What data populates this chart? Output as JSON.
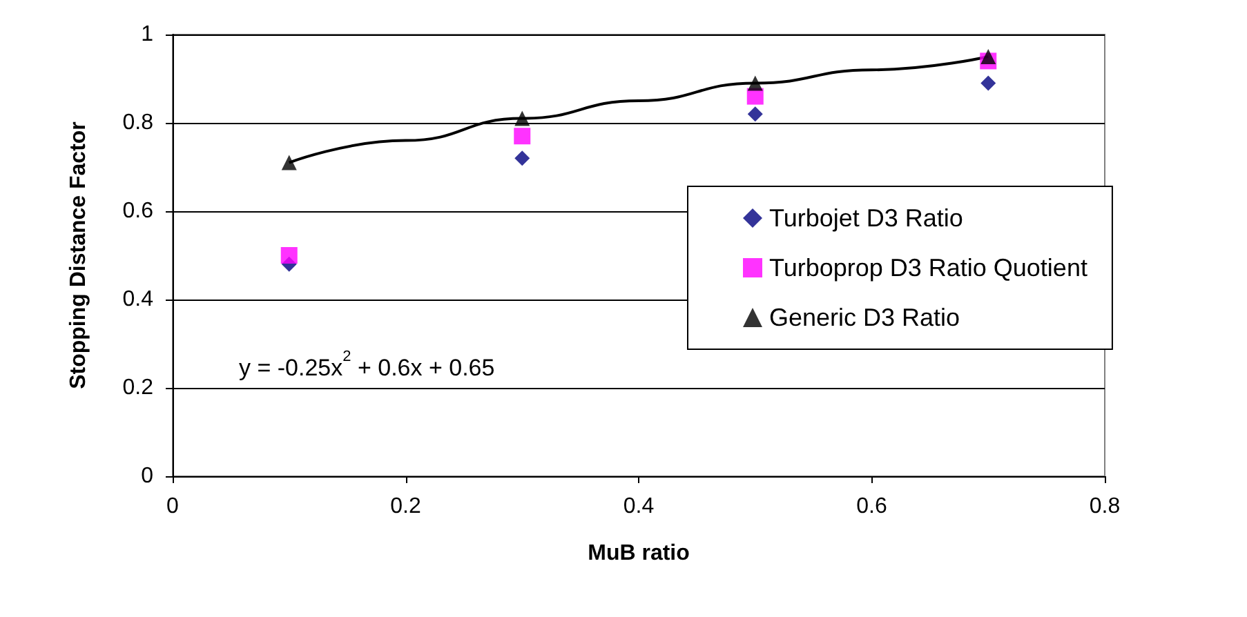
{
  "chart_data": {
    "type": "scatter",
    "xlabel": "MuB ratio",
    "ylabel": "Stopping Distance Factor",
    "x": [
      0.1,
      0.3,
      0.5,
      0.7
    ],
    "series": [
      {
        "name": "Turbojet D3 Ratio",
        "color": "#000080",
        "marker": "diamond",
        "values": [
          0.48,
          0.72,
          0.82,
          0.89
        ]
      },
      {
        "name": "Turboprop D3 Ratio Quotient",
        "color": "#ff00ff",
        "marker": "square",
        "values": [
          0.5,
          0.77,
          0.86,
          0.94
        ]
      },
      {
        "name": "Generic D3 Ratio",
        "color": "#000000",
        "marker": "triangle",
        "values": [
          0.71,
          0.81,
          0.89,
          0.95
        ]
      },
      {
        "type": "line",
        "color": "#000000",
        "marker": "none",
        "x": [
          0.1,
          0.2,
          0.3,
          0.4,
          0.5,
          0.6,
          0.7
        ],
        "values": [
          0.71,
          0.76,
          0.81,
          0.85,
          0.89,
          0.92,
          0.95
        ]
      }
    ],
    "xlim": [
      0,
      0.8
    ],
    "xticks": [
      0,
      0.2,
      0.4,
      0.6,
      0.8
    ],
    "ylim": [
      0,
      1
    ],
    "yticks": [
      0,
      0.2,
      0.4,
      0.6,
      0.8,
      1
    ],
    "grid": "y",
    "legend": "right",
    "annotations": [
      "y = -0.25x$^{2}$ + 0.6x + 0.65"
    ]
  }
}
